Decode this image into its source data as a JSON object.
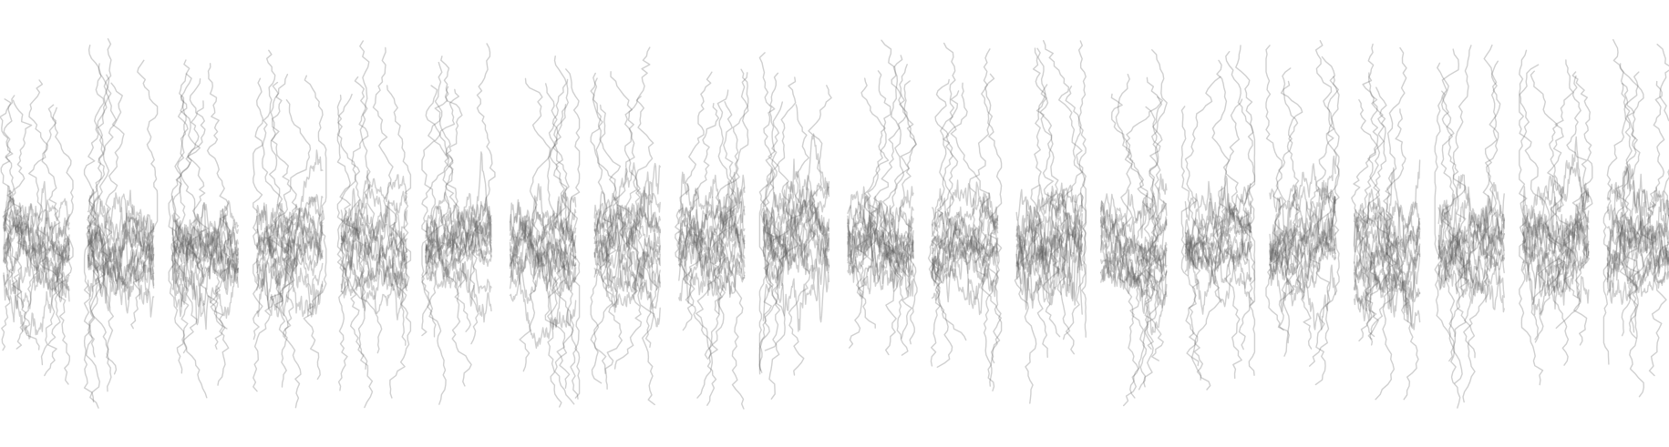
{
  "artwork": {
    "description_kind": "generative-line-art",
    "column_count": 20,
    "traces_per_column": 14,
    "colors": {
      "background": "#ffffff",
      "stroke": "#555555",
      "stroke_opacity": 0.28
    }
  }
}
